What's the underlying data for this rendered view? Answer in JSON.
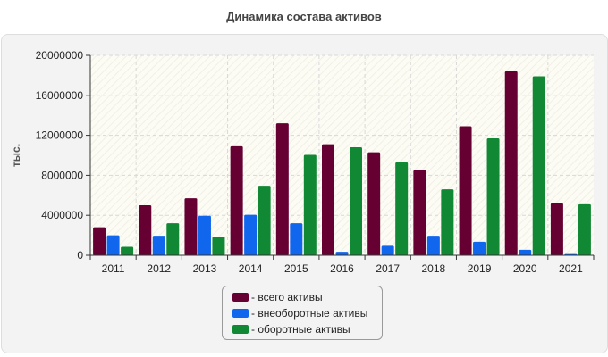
{
  "chart_data": {
    "type": "bar",
    "title": "Динамика состава активов",
    "ylabel": "тыс.",
    "xlabel": "",
    "categories": [
      "2011",
      "2012",
      "2013",
      "2014",
      "2015",
      "2016",
      "2017",
      "2018",
      "2019",
      "2020",
      "2021"
    ],
    "ylim": [
      0,
      20000000
    ],
    "yticks": [
      0,
      4000000,
      8000000,
      12000000,
      16000000,
      20000000
    ],
    "ytick_labels": [
      "0",
      "4000000",
      "8000000",
      "12000000",
      "16000000",
      "20000000"
    ],
    "grid": true,
    "legend_position": "bottom",
    "series": [
      {
        "name": "всего активы",
        "color": "#660033",
        "values": [
          2800000,
          5000000,
          5700000,
          10900000,
          13200000,
          11100000,
          10300000,
          8500000,
          12900000,
          18400000,
          5200000
        ]
      },
      {
        "name": "внеоборотные активы",
        "color": "#1166ee",
        "values": [
          2000000,
          1950000,
          3950000,
          4050000,
          3200000,
          350000,
          950000,
          1950000,
          1350000,
          550000,
          120000
        ]
      },
      {
        "name": "оборотные активы",
        "color": "#118833",
        "values": [
          850000,
          3200000,
          1850000,
          6950000,
          10050000,
          10800000,
          9300000,
          6600000,
          11700000,
          17900000,
          5100000
        ]
      }
    ],
    "legend_labels": [
      "- всего активы",
      "- внеоборотные активы",
      "- оборотные активы"
    ]
  }
}
